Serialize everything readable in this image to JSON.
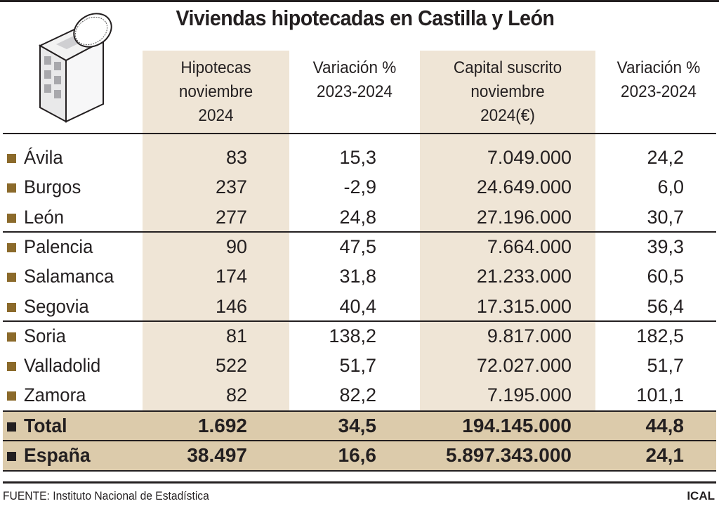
{
  "chart_data": {
    "type": "table",
    "title": "Viviendas hipotecadas en Castilla y León",
    "columns": [
      "Hipotecas noviembre 2024",
      "Variación % 2023-2024",
      "Capital suscrito noviembre 2024(€)",
      "Variación % 2023-2024"
    ],
    "header_lines": [
      [
        "Hipotecas",
        "noviembre",
        "2024"
      ],
      [
        "Variación %",
        "2023-2024"
      ],
      [
        "Capital suscrito",
        "noviembre",
        "2024(€)"
      ],
      [
        "Variación %",
        "2023-2024"
      ]
    ],
    "rows": [
      {
        "name": "Ávila",
        "values": [
          "83",
          "15,3",
          "7.049.000",
          "24,2"
        ]
      },
      {
        "name": "Burgos",
        "values": [
          "237",
          "-2,9",
          "24.649.000",
          "6,0"
        ]
      },
      {
        "name": "León",
        "values": [
          "277",
          "24,8",
          "27.196.000",
          "30,7"
        ]
      },
      {
        "name": "Palencia",
        "values": [
          "90",
          "47,5",
          "7.664.000",
          "39,3"
        ]
      },
      {
        "name": "Salamanca",
        "values": [
          "174",
          "31,8",
          "21.233.000",
          "60,5"
        ]
      },
      {
        "name": "Segovia",
        "values": [
          "146",
          "40,4",
          "17.315.000",
          "56,4"
        ]
      },
      {
        "name": "Soria",
        "values": [
          "81",
          "138,2",
          "9.817.000",
          "182,5"
        ]
      },
      {
        "name": "Valladolid",
        "values": [
          "522",
          "51,7",
          "72.027.000",
          "51,7"
        ]
      },
      {
        "name": "Zamora",
        "values": [
          "82",
          "82,2",
          "7.195.000",
          "101,1"
        ]
      }
    ],
    "totals": [
      {
        "name": "Total",
        "values": [
          "1.692",
          "34,5",
          "194.145.000",
          "44,8"
        ]
      },
      {
        "name": "España",
        "values": [
          "38.497",
          "16,6",
          "5.897.343.000",
          "24,1"
        ]
      }
    ],
    "source": "FUENTE: Instituto Nacional de Estadística",
    "credit": "ICAL"
  },
  "colors": {
    "column_bg": "#efe5d6",
    "total_bg": "#dccbab",
    "bullet": "#8b6a2b"
  },
  "icon": "building-coin-icon"
}
